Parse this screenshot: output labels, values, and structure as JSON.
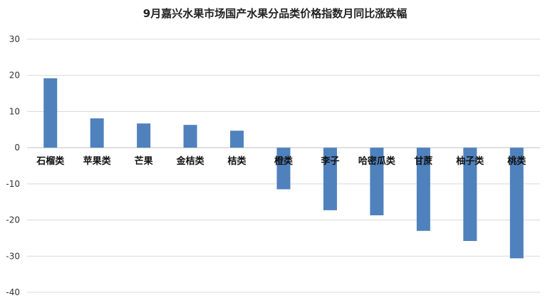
{
  "chart_data": {
    "type": "bar",
    "title": "9月嘉兴水果市场国产水果分品类价格指数月同比涨跌幅",
    "xlabel": "",
    "ylabel": "",
    "ylim": [
      -40,
      30
    ],
    "yticks": [
      30,
      20,
      10,
      0,
      -10,
      -20,
      -30,
      -40
    ],
    "grid": true,
    "bar_color": "#4f81bd",
    "categories": [
      "石榴类",
      "苹果类",
      "芒果",
      "金桔类",
      "桔类",
      "橙类",
      "李子",
      "哈密瓜类",
      "甘蔗",
      "柚子类",
      "桃类"
    ],
    "values": [
      19.2,
      8.1,
      6.7,
      6.3,
      4.7,
      -11.5,
      -17.3,
      -18.7,
      -23.0,
      -25.8,
      -30.6
    ]
  }
}
